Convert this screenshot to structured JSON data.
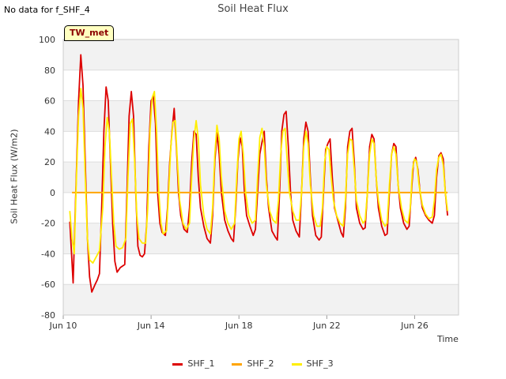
{
  "note": "No data for f_SHF_4",
  "badge": "TW_met",
  "chart_data": {
    "type": "line",
    "title": "Soil Heat Flux",
    "xlabel": "Time",
    "ylabel": "Soil Heat Flux (W/m2)",
    "xlim": [
      10.0,
      28.0
    ],
    "ylim": [
      -80,
      100
    ],
    "yticks": [
      -80,
      -60,
      -40,
      -20,
      0,
      20,
      40,
      60,
      80,
      100
    ],
    "xticks": [
      {
        "day": 10,
        "label": "Jun 10"
      },
      {
        "day": 14,
        "label": "Jun 14"
      },
      {
        "day": 18,
        "label": "Jun 18"
      },
      {
        "day": 22,
        "label": "Jun 22"
      },
      {
        "day": 26,
        "label": "Jun 26"
      }
    ],
    "grid": true,
    "legend_position": "bottom-center",
    "series": [
      {
        "name": "SHF_1",
        "color": "#dd0000",
        "points": [
          [
            10.3,
            -19
          ],
          [
            10.45,
            -59
          ],
          [
            10.55,
            -10
          ],
          [
            10.7,
            60
          ],
          [
            10.8,
            90
          ],
          [
            10.9,
            70
          ],
          [
            11.0,
            20
          ],
          [
            11.1,
            -30
          ],
          [
            11.2,
            -55
          ],
          [
            11.3,
            -65
          ],
          [
            11.45,
            -60
          ],
          [
            11.55,
            -57
          ],
          [
            11.65,
            -53
          ],
          [
            11.75,
            -10
          ],
          [
            11.85,
            40
          ],
          [
            11.95,
            69
          ],
          [
            12.05,
            60
          ],
          [
            12.15,
            20
          ],
          [
            12.25,
            -20
          ],
          [
            12.35,
            -45
          ],
          [
            12.45,
            -52
          ],
          [
            12.6,
            -49
          ],
          [
            12.8,
            -47
          ],
          [
            12.9,
            0
          ],
          [
            13.0,
            50
          ],
          [
            13.1,
            66
          ],
          [
            13.2,
            50
          ],
          [
            13.3,
            0
          ],
          [
            13.4,
            -35
          ],
          [
            13.5,
            -41
          ],
          [
            13.6,
            -42
          ],
          [
            13.7,
            -40
          ],
          [
            13.8,
            -20
          ],
          [
            13.9,
            30
          ],
          [
            14.0,
            60
          ],
          [
            14.1,
            63
          ],
          [
            14.2,
            45
          ],
          [
            14.3,
            0
          ],
          [
            14.4,
            -20
          ],
          [
            14.5,
            -26
          ],
          [
            14.65,
            -28
          ],
          [
            14.75,
            -10
          ],
          [
            14.85,
            20
          ],
          [
            14.95,
            40
          ],
          [
            15.05,
            55
          ],
          [
            15.15,
            30
          ],
          [
            15.25,
            0
          ],
          [
            15.35,
            -15
          ],
          [
            15.5,
            -24
          ],
          [
            15.65,
            -26
          ],
          [
            15.75,
            -10
          ],
          [
            15.85,
            20
          ],
          [
            15.95,
            40
          ],
          [
            16.05,
            38
          ],
          [
            16.15,
            10
          ],
          [
            16.25,
            -10
          ],
          [
            16.4,
            -22
          ],
          [
            16.55,
            -30
          ],
          [
            16.7,
            -33
          ],
          [
            16.8,
            -15
          ],
          [
            16.9,
            20
          ],
          [
            17.0,
            39
          ],
          [
            17.1,
            25
          ],
          [
            17.2,
            0
          ],
          [
            17.35,
            -18
          ],
          [
            17.5,
            -25
          ],
          [
            17.65,
            -30
          ],
          [
            17.75,
            -32
          ],
          [
            17.85,
            -10
          ],
          [
            17.95,
            20
          ],
          [
            18.05,
            36
          ],
          [
            18.15,
            30
          ],
          [
            18.25,
            0
          ],
          [
            18.35,
            -15
          ],
          [
            18.5,
            -22
          ],
          [
            18.65,
            -28
          ],
          [
            18.75,
            -24
          ],
          [
            18.85,
            0
          ],
          [
            18.95,
            25
          ],
          [
            19.05,
            33
          ],
          [
            19.15,
            40
          ],
          [
            19.25,
            10
          ],
          [
            19.35,
            -10
          ],
          [
            19.5,
            -25
          ],
          [
            19.65,
            -29
          ],
          [
            19.75,
            -31
          ],
          [
            19.85,
            0
          ],
          [
            19.95,
            40
          ],
          [
            20.05,
            51
          ],
          [
            20.15,
            53
          ],
          [
            20.25,
            30
          ],
          [
            20.35,
            0
          ],
          [
            20.45,
            -18
          ],
          [
            20.6,
            -25
          ],
          [
            20.75,
            -29
          ],
          [
            20.85,
            0
          ],
          [
            20.95,
            35
          ],
          [
            21.05,
            46
          ],
          [
            21.15,
            40
          ],
          [
            21.25,
            10
          ],
          [
            21.35,
            -15
          ],
          [
            21.5,
            -28
          ],
          [
            21.65,
            -31
          ],
          [
            21.75,
            -29
          ],
          [
            21.85,
            0
          ],
          [
            21.95,
            28
          ],
          [
            22.05,
            32
          ],
          [
            22.15,
            35
          ],
          [
            22.25,
            10
          ],
          [
            22.35,
            -10
          ],
          [
            22.5,
            -18
          ],
          [
            22.65,
            -26
          ],
          [
            22.75,
            -29
          ],
          [
            22.85,
            -10
          ],
          [
            22.95,
            30
          ],
          [
            23.05,
            40
          ],
          [
            23.15,
            42
          ],
          [
            23.25,
            20
          ],
          [
            23.35,
            -10
          ],
          [
            23.5,
            -20
          ],
          [
            23.65,
            -24
          ],
          [
            23.75,
            -23
          ],
          [
            23.85,
            0
          ],
          [
            23.95,
            30
          ],
          [
            24.05,
            38
          ],
          [
            24.15,
            35
          ],
          [
            24.25,
            10
          ],
          [
            24.35,
            -10
          ],
          [
            24.5,
            -22
          ],
          [
            24.65,
            -28
          ],
          [
            24.75,
            -27
          ],
          [
            24.85,
            0
          ],
          [
            24.95,
            25
          ],
          [
            25.05,
            32
          ],
          [
            25.15,
            30
          ],
          [
            25.25,
            5
          ],
          [
            25.35,
            -10
          ],
          [
            25.5,
            -20
          ],
          [
            25.65,
            -24
          ],
          [
            25.75,
            -22
          ],
          [
            25.85,
            0
          ],
          [
            25.95,
            20
          ],
          [
            26.05,
            23
          ],
          [
            26.15,
            15
          ],
          [
            26.25,
            0
          ],
          [
            26.35,
            -10
          ],
          [
            26.5,
            -15
          ],
          [
            26.65,
            -18
          ],
          [
            26.8,
            -20
          ],
          [
            26.9,
            -15
          ],
          [
            27.0,
            10
          ],
          [
            27.1,
            24
          ],
          [
            27.2,
            26
          ],
          [
            27.3,
            22
          ],
          [
            27.4,
            0
          ],
          [
            27.5,
            -15
          ]
        ]
      },
      {
        "name": "SHF_2",
        "color": "#ffa500",
        "points": [
          [
            10.4,
            0
          ],
          [
            27.5,
            0
          ]
        ]
      },
      {
        "name": "SHF_3",
        "color": "#ffee00",
        "points": [
          [
            10.3,
            -12
          ],
          [
            10.4,
            -30
          ],
          [
            10.5,
            -40
          ],
          [
            10.6,
            10
          ],
          [
            10.7,
            50
          ],
          [
            10.8,
            68
          ],
          [
            10.9,
            55
          ],
          [
            11.0,
            10
          ],
          [
            11.1,
            -30
          ],
          [
            11.2,
            -44
          ],
          [
            11.35,
            -46
          ],
          [
            11.5,
            -42
          ],
          [
            11.65,
            -38
          ],
          [
            11.8,
            -10
          ],
          [
            11.9,
            30
          ],
          [
            12.0,
            49
          ],
          [
            12.1,
            40
          ],
          [
            12.2,
            10
          ],
          [
            12.3,
            -20
          ],
          [
            12.4,
            -35
          ],
          [
            12.55,
            -37
          ],
          [
            12.7,
            -36
          ],
          [
            12.85,
            -30
          ],
          [
            12.95,
            10
          ],
          [
            13.05,
            45
          ],
          [
            13.15,
            48
          ],
          [
            13.25,
            20
          ],
          [
            13.35,
            -15
          ],
          [
            13.45,
            -30
          ],
          [
            13.6,
            -33
          ],
          [
            13.75,
            -33
          ],
          [
            13.85,
            -10
          ],
          [
            13.95,
            40
          ],
          [
            14.05,
            62
          ],
          [
            14.15,
            66
          ],
          [
            14.25,
            40
          ],
          [
            14.35,
            0
          ],
          [
            14.45,
            -20
          ],
          [
            14.55,
            -27
          ],
          [
            14.7,
            -25
          ],
          [
            14.8,
            0
          ],
          [
            14.9,
            30
          ],
          [
            15.0,
            46
          ],
          [
            15.1,
            47
          ],
          [
            15.2,
            20
          ],
          [
            15.3,
            -5
          ],
          [
            15.45,
            -20
          ],
          [
            15.6,
            -24
          ],
          [
            15.75,
            -20
          ],
          [
            15.85,
            10
          ],
          [
            15.95,
            35
          ],
          [
            16.05,
            47
          ],
          [
            16.15,
            35
          ],
          [
            16.25,
            5
          ],
          [
            16.4,
            -15
          ],
          [
            16.55,
            -24
          ],
          [
            16.7,
            -27
          ],
          [
            16.8,
            -10
          ],
          [
            16.9,
            25
          ],
          [
            17.0,
            44
          ],
          [
            17.1,
            35
          ],
          [
            17.2,
            10
          ],
          [
            17.35,
            -12
          ],
          [
            17.5,
            -20
          ],
          [
            17.65,
            -24
          ],
          [
            17.8,
            -20
          ],
          [
            17.9,
            10
          ],
          [
            18.0,
            35
          ],
          [
            18.1,
            40
          ],
          [
            18.2,
            25
          ],
          [
            18.3,
            0
          ],
          [
            18.45,
            -15
          ],
          [
            18.6,
            -20
          ],
          [
            18.75,
            -18
          ],
          [
            18.85,
            10
          ],
          [
            18.95,
            36
          ],
          [
            19.05,
            42
          ],
          [
            19.15,
            30
          ],
          [
            19.25,
            5
          ],
          [
            19.4,
            -12
          ],
          [
            19.55,
            -18
          ],
          [
            19.7,
            -20
          ],
          [
            19.8,
            -5
          ],
          [
            19.9,
            25
          ],
          [
            20.0,
            40
          ],
          [
            20.1,
            42
          ],
          [
            20.2,
            20
          ],
          [
            20.3,
            0
          ],
          [
            20.45,
            -12
          ],
          [
            20.6,
            -18
          ],
          [
            20.75,
            -18
          ],
          [
            20.85,
            0
          ],
          [
            20.95,
            30
          ],
          [
            21.05,
            40
          ],
          [
            21.15,
            32
          ],
          [
            21.25,
            5
          ],
          [
            21.4,
            -15
          ],
          [
            21.55,
            -22
          ],
          [
            21.7,
            -22
          ],
          [
            21.8,
            -10
          ],
          [
            21.9,
            20
          ],
          [
            22.0,
            30
          ],
          [
            22.1,
            28
          ],
          [
            22.2,
            10
          ],
          [
            22.3,
            -5
          ],
          [
            22.45,
            -15
          ],
          [
            22.6,
            -20
          ],
          [
            22.75,
            -22
          ],
          [
            22.85,
            -5
          ],
          [
            22.95,
            25
          ],
          [
            23.05,
            35
          ],
          [
            23.15,
            34
          ],
          [
            23.25,
            15
          ],
          [
            23.35,
            -5
          ],
          [
            23.5,
            -15
          ],
          [
            23.65,
            -20
          ],
          [
            23.75,
            -18
          ],
          [
            23.85,
            0
          ],
          [
            23.95,
            25
          ],
          [
            24.05,
            35
          ],
          [
            24.15,
            32
          ],
          [
            24.25,
            10
          ],
          [
            24.35,
            -5
          ],
          [
            24.5,
            -18
          ],
          [
            24.65,
            -22
          ],
          [
            24.75,
            -20
          ],
          [
            24.85,
            5
          ],
          [
            24.95,
            25
          ],
          [
            25.05,
            30
          ],
          [
            25.15,
            25
          ],
          [
            25.25,
            5
          ],
          [
            25.4,
            -10
          ],
          [
            25.55,
            -18
          ],
          [
            25.7,
            -20
          ],
          [
            25.8,
            -10
          ],
          [
            25.9,
            15
          ],
          [
            26.0,
            22
          ],
          [
            26.1,
            20
          ],
          [
            26.2,
            5
          ],
          [
            26.35,
            -8
          ],
          [
            26.5,
            -14
          ],
          [
            26.65,
            -17
          ],
          [
            26.8,
            -16
          ],
          [
            26.9,
            -5
          ],
          [
            27.0,
            15
          ],
          [
            27.1,
            23
          ],
          [
            27.2,
            25
          ],
          [
            27.3,
            18
          ],
          [
            27.4,
            0
          ],
          [
            27.5,
            -12
          ]
        ]
      }
    ]
  }
}
